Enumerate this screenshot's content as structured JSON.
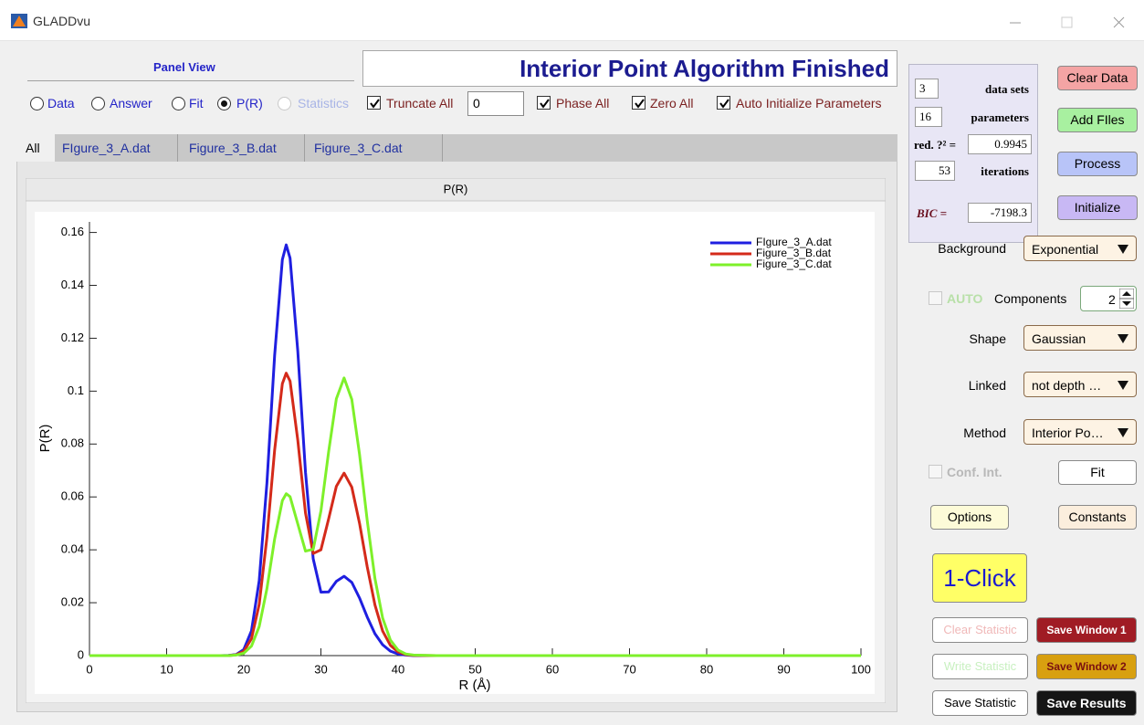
{
  "window": {
    "title": "GLADDvu"
  },
  "panel_view": {
    "title": "Panel View",
    "options": [
      "Data",
      "Answer",
      "Fit",
      "P(R)",
      "Statistics"
    ]
  },
  "status": "Interior Point Algorithm Finished",
  "options_row": {
    "truncate_all": "Truncate All",
    "truncate_value": "0",
    "phase_all": "Phase All",
    "zero_all": "Zero All",
    "auto_initialize": "Auto Initialize Parameters"
  },
  "tabs": [
    "All",
    "FIgure_3_A.dat",
    "Figure_3_B.dat",
    "Figure_3_C.dat"
  ],
  "stats": {
    "data_sets": {
      "value": "3",
      "label": "data sets"
    },
    "parameters": {
      "value": "16",
      "label": "parameters"
    },
    "red_chi2": {
      "label": "red. ?² =",
      "value": "0.9945"
    },
    "iterations": {
      "value": "53",
      "label": "iterations"
    },
    "bic": {
      "label": "BIC =",
      "value": "-7198.3"
    }
  },
  "buttons": {
    "clear_data": "Clear Data",
    "add_files": "Add FIles",
    "process": "Process",
    "initialize": "Initialize",
    "fit": "Fit",
    "options": "Options",
    "constants": "Constants",
    "one_click": "1-Click",
    "clear_statistic": "Clear Statistic",
    "save_window_1": "Save Window 1",
    "write_statistic": "Write Statistic",
    "save_window_2": "Save Window 2",
    "save_statistic": "Save Statistic",
    "save_results": "Save Results"
  },
  "settings": {
    "background": {
      "label": "Background",
      "value": "Exponential"
    },
    "auto": "AUTO",
    "components": {
      "label": "Components",
      "value": "2"
    },
    "shape": {
      "label": "Shape",
      "value": "Gaussian"
    },
    "linked": {
      "label": "Linked",
      "value": "not depth …"
    },
    "method": {
      "label": "Method",
      "value": "Interior Po…"
    },
    "conf_int": "Conf. Int."
  },
  "chart_data": {
    "type": "line",
    "title": "P(R)",
    "x_label": "R (Å)",
    "y_label": "P(R)",
    "x": [
      0,
      10,
      17,
      18,
      19,
      20,
      21,
      22,
      23,
      24,
      25,
      25.5,
      26,
      27,
      28,
      29,
      30,
      31,
      32,
      33,
      34,
      35,
      36,
      37,
      38,
      39,
      40,
      41,
      42,
      45,
      100
    ],
    "series": [
      {
        "name": "FIgure_3_A.dat",
        "color": "#1f1fe0",
        "values": [
          0,
          0,
          0,
          0.0001,
          0.0004,
          0.0023,
          0.0094,
          0.0283,
          0.0652,
          0.1135,
          0.1497,
          0.1553,
          0.1503,
          0.1152,
          0.0693,
          0.0366,
          0.024,
          0.0241,
          0.0281,
          0.03,
          0.0277,
          0.0218,
          0.0146,
          0.0083,
          0.0041,
          0.0017,
          0.0006,
          0.0002,
          0,
          0,
          0
        ]
      },
      {
        "name": "Figure_3_B.dat",
        "color": "#d42a1a",
        "values": [
          0,
          0,
          0,
          0,
          0.0003,
          0.0016,
          0.0064,
          0.0194,
          0.0446,
          0.0777,
          0.1028,
          0.1068,
          0.1038,
          0.0815,
          0.0539,
          0.0386,
          0.04,
          0.0517,
          0.064,
          0.069,
          0.0637,
          0.0501,
          0.0336,
          0.0192,
          0.0093,
          0.0039,
          0.0014,
          0.0004,
          0.0001,
          0,
          0
        ]
      },
      {
        "name": "Figure_3_C.dat",
        "color": "#7ef02a",
        "values": [
          0,
          0,
          0,
          0,
          0.0002,
          0.0009,
          0.0036,
          0.011,
          0.0253,
          0.0441,
          0.0586,
          0.0612,
          0.0601,
          0.0498,
          0.0395,
          0.0402,
          0.0547,
          0.0771,
          0.0971,
          0.105,
          0.0969,
          0.0762,
          0.0511,
          0.0292,
          0.0142,
          0.0059,
          0.0021,
          0.0006,
          0.0002,
          0,
          0
        ]
      }
    ],
    "xlim": [
      0,
      100
    ],
    "xticks": [
      0,
      10,
      20,
      30,
      40,
      50,
      60,
      70,
      80,
      90,
      100
    ],
    "ylim": [
      0,
      0.164
    ],
    "yticks": [
      0,
      0.02,
      0.04,
      0.06,
      0.08,
      0.1,
      0.12,
      0.14,
      0.16
    ],
    "grid": false,
    "legend": "top-right"
  }
}
